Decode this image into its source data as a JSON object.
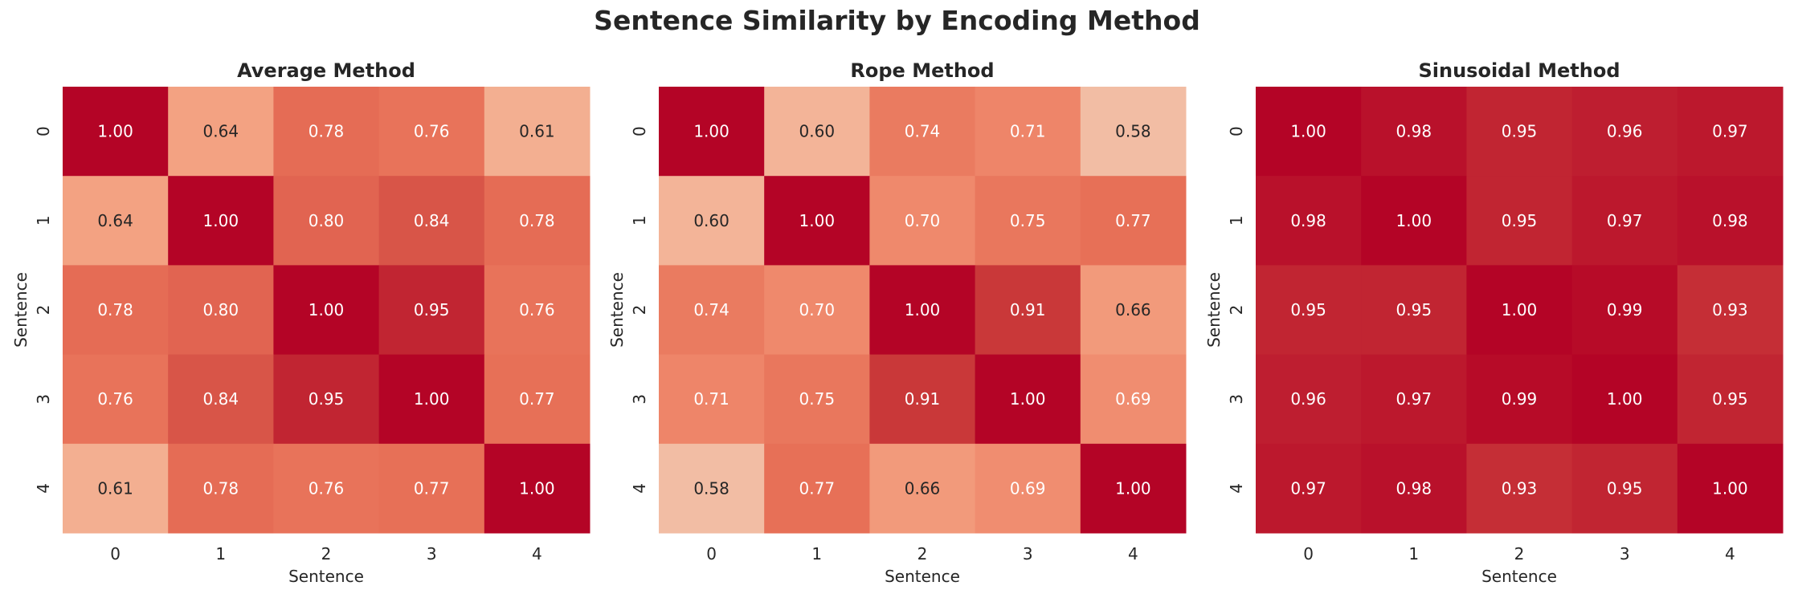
{
  "figure": {
    "title": "Sentence Similarity by Encoding Method"
  },
  "chart_data": [
    {
      "type": "heatmap",
      "title": "Average Method",
      "xlabel": "Sentence",
      "ylabel": "Sentence",
      "x_categories": [
        "0",
        "1",
        "2",
        "3",
        "4"
      ],
      "y_categories": [
        "0",
        "1",
        "2",
        "3",
        "4"
      ],
      "values": [
        [
          1.0,
          0.64,
          0.78,
          0.76,
          0.61
        ],
        [
          0.64,
          1.0,
          0.8,
          0.84,
          0.78
        ],
        [
          0.78,
          0.8,
          1.0,
          0.95,
          0.76
        ],
        [
          0.76,
          0.84,
          0.95,
          1.0,
          0.77
        ],
        [
          0.61,
          0.78,
          0.76,
          0.77,
          1.0
        ]
      ],
      "annotation_format": "2 decimals",
      "colormap": "coolwarm (upper half)",
      "colorbar": false
    },
    {
      "type": "heatmap",
      "title": "Rope Method",
      "xlabel": "Sentence",
      "ylabel": "Sentence",
      "x_categories": [
        "0",
        "1",
        "2",
        "3",
        "4"
      ],
      "y_categories": [
        "0",
        "1",
        "2",
        "3",
        "4"
      ],
      "values": [
        [
          1.0,
          0.6,
          0.74,
          0.71,
          0.58
        ],
        [
          0.6,
          1.0,
          0.7,
          0.75,
          0.77
        ],
        [
          0.74,
          0.7,
          1.0,
          0.91,
          0.66
        ],
        [
          0.71,
          0.75,
          0.91,
          1.0,
          0.69
        ],
        [
          0.58,
          0.77,
          0.66,
          0.69,
          1.0
        ]
      ],
      "annotation_format": "2 decimals",
      "colormap": "coolwarm (upper half)",
      "colorbar": false
    },
    {
      "type": "heatmap",
      "title": "Sinusoidal Method",
      "xlabel": "Sentence",
      "ylabel": "Sentence",
      "x_categories": [
        "0",
        "1",
        "2",
        "3",
        "4"
      ],
      "y_categories": [
        "0",
        "1",
        "2",
        "3",
        "4"
      ],
      "values": [
        [
          1.0,
          0.98,
          0.95,
          0.96,
          0.97
        ],
        [
          0.98,
          1.0,
          0.95,
          0.97,
          0.98
        ],
        [
          0.95,
          0.95,
          1.0,
          0.99,
          0.93
        ],
        [
          0.96,
          0.97,
          0.99,
          1.0,
          0.95
        ],
        [
          0.97,
          0.98,
          0.93,
          0.95,
          1.0
        ]
      ],
      "annotation_format": "2 decimals",
      "colormap": "coolwarm (upper half)",
      "colorbar": false
    }
  ]
}
